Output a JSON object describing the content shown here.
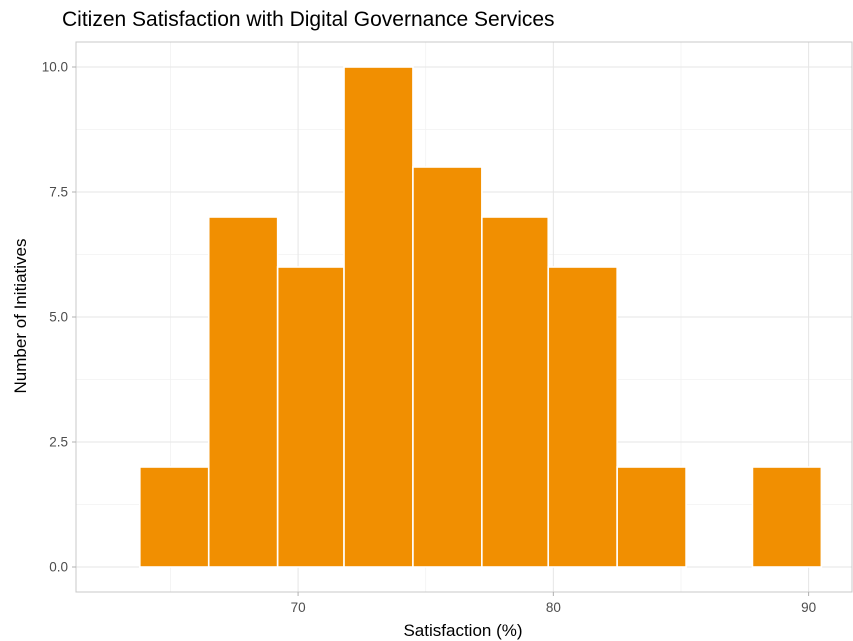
{
  "chart_data": {
    "type": "bar",
    "subtype": "histogram",
    "title": "Citizen Satisfaction with Digital Governance Services",
    "xlabel": "Satisfaction (%)",
    "ylabel": "Number of Initiatives",
    "bins": [
      {
        "x_start": 63.8,
        "x_end": 66.5,
        "count": 2
      },
      {
        "x_start": 66.5,
        "x_end": 69.2,
        "count": 7
      },
      {
        "x_start": 69.2,
        "x_end": 71.8,
        "count": 6
      },
      {
        "x_start": 71.8,
        "x_end": 74.5,
        "count": 10
      },
      {
        "x_start": 74.5,
        "x_end": 77.2,
        "count": 8
      },
      {
        "x_start": 77.2,
        "x_end": 79.8,
        "count": 7
      },
      {
        "x_start": 79.8,
        "x_end": 82.5,
        "count": 6
      },
      {
        "x_start": 82.5,
        "x_end": 85.2,
        "count": 2
      },
      {
        "x_start": 85.2,
        "x_end": 87.8,
        "count": 0
      },
      {
        "x_start": 87.8,
        "x_end": 90.5,
        "count": 2
      }
    ],
    "xlim": [
      61.3,
      91.7
    ],
    "ylim": [
      -0.5,
      10.5
    ],
    "x_ticks": [
      70,
      80,
      90
    ],
    "x_tick_labels": [
      "70",
      "80",
      "90"
    ],
    "y_ticks": [
      0,
      2.5,
      5,
      7.5,
      10
    ],
    "y_tick_labels": [
      "0.0",
      "2.5",
      "5.0",
      "7.5",
      "10.0"
    ],
    "grid": true,
    "legend": "none",
    "colors": {
      "bar_fill": "#F18F01",
      "bar_outline": "#FFFFFF",
      "grid_major": "#E6E6E6",
      "grid_minor": "#F2F2F2",
      "panel_border": "#C8C8C8",
      "tick_text": "#4D4D4D"
    }
  }
}
